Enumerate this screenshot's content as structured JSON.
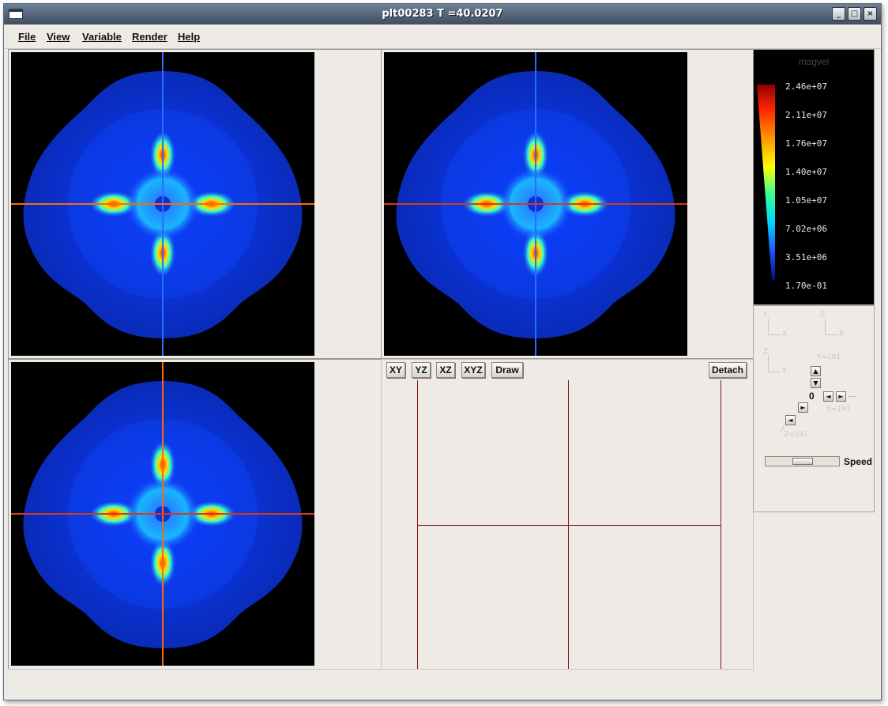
{
  "window": {
    "title": "plt00283   T =40.0207",
    "buttons": {
      "minimize": "_",
      "maximize": "□",
      "close": "×"
    }
  },
  "menu": {
    "items": [
      {
        "label": "File"
      },
      {
        "label": "View"
      },
      {
        "label": "Variable"
      },
      {
        "label": "Render"
      },
      {
        "label": "Help"
      }
    ]
  },
  "toolbar": {
    "xy": "XY",
    "yz": "YZ",
    "xz": "XZ",
    "xyz": "XYZ",
    "draw": "Draw",
    "detach": "Detach"
  },
  "colorbar": {
    "variable": "magvel",
    "labels": [
      "2.46e+07",
      "2.11e+07",
      "1.76e+07",
      "1.40e+07",
      "1.05e+07",
      "7.02e+06",
      "3.51e+06",
      "1.70e-01"
    ]
  },
  "orientation": {
    "xy_axes": {
      "up": "Y",
      "right": "X"
    },
    "xz_axes": {
      "up": "Z",
      "right": "X"
    },
    "yz_axes": {
      "up": "Z",
      "right": "Y"
    },
    "y_value": "Y=191",
    "x_value": "X=191",
    "z_value": "Z=191",
    "level": "0"
  },
  "speed": {
    "label": "Speed",
    "value": 0.5
  },
  "colors": {
    "crosshair_red": "#d23a1e",
    "crosshair_blue": "#2a6cff",
    "crosshair_orange": "#ff6a00",
    "frame_line": "#8b1010"
  }
}
